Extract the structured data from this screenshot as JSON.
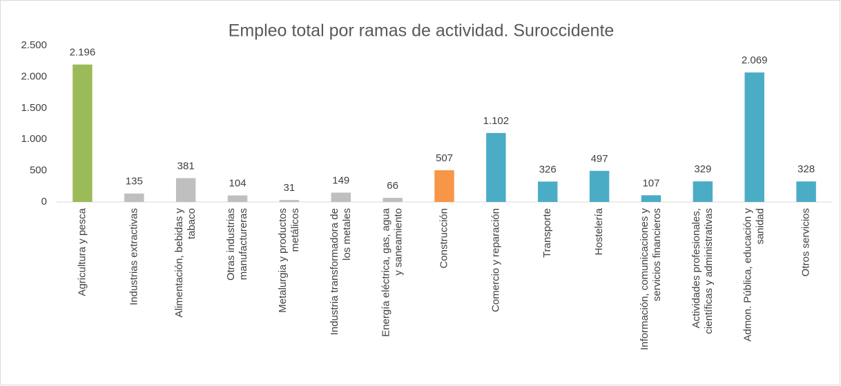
{
  "chart_data": {
    "type": "bar",
    "title": "Empleo total por ramas de actividad. Suroccidente",
    "categories": [
      "Agricultura y pesca",
      "Industrias extractivas",
      "Alimentación, bebidas y tabaco",
      "Otras industrias manufactureras",
      "Metalurgia y productos metálicos",
      "Industria transformadora de los metales",
      "Energía eléctrica, gas, agua y saneamiento",
      "Construcción",
      "Comercio y reparación",
      "Transporte",
      "Hostelería",
      "Información, comunicaciones y servicios financieros",
      "Actividades profesionales, científicas y administrativas",
      "Admon. Pública, educación y sanidad",
      "Otros servicios"
    ],
    "values": [
      2196,
      135,
      381,
      104,
      31,
      149,
      66,
      507,
      1102,
      326,
      497,
      107,
      329,
      2069,
      328
    ],
    "value_labels": [
      "2.196",
      "135",
      "381",
      "104",
      "31",
      "149",
      "66",
      "507",
      "1.102",
      "326",
      "497",
      "107",
      "329",
      "2.069",
      "328"
    ],
    "colors": [
      "#9bbb59",
      "#bfbfbf",
      "#bfbfbf",
      "#bfbfbf",
      "#bfbfbf",
      "#bfbfbf",
      "#bfbfbf",
      "#f79646",
      "#4bacc6",
      "#4bacc6",
      "#4bacc6",
      "#4bacc6",
      "#4bacc6",
      "#4bacc6",
      "#4bacc6"
    ],
    "ylim": [
      0,
      2500
    ],
    "yticks": [
      0,
      500,
      {
        "value": 1000,
        "label": "1.000"
      },
      {
        "value": 1500,
        "label": "1.500"
      },
      {
        "value": 2000,
        "label": "2.000"
      },
      {
        "value": 2500,
        "label": "2.500"
      }
    ],
    "grid": false
  }
}
